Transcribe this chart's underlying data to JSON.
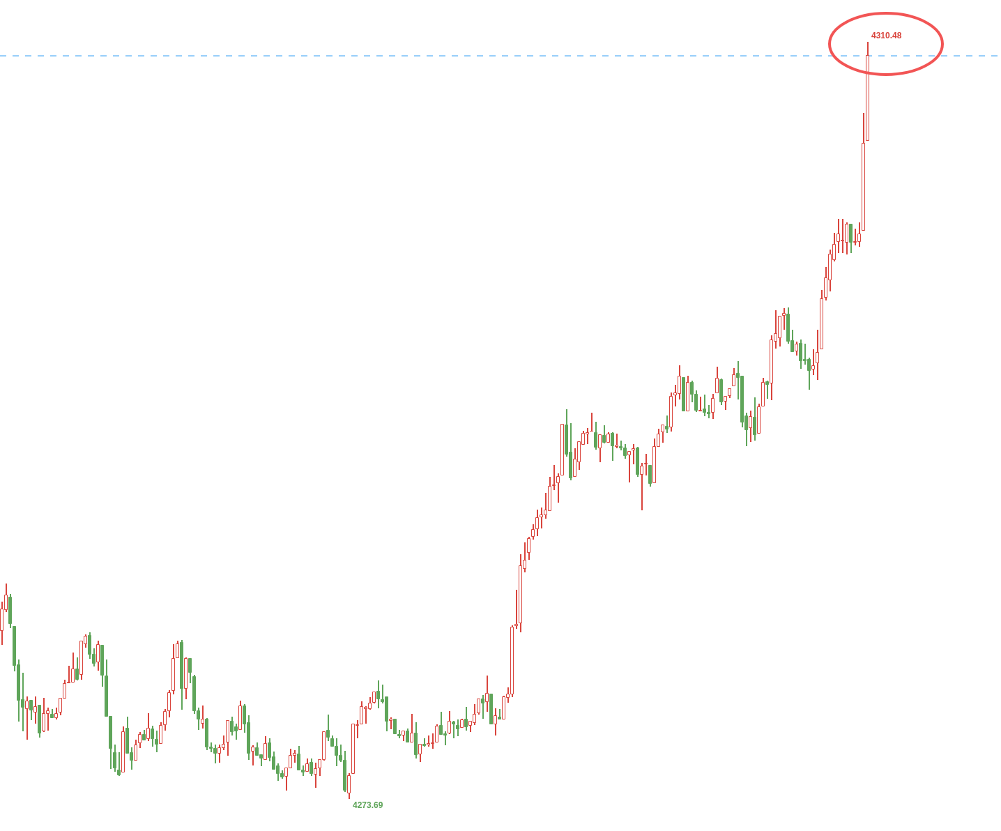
{
  "chart_data": {
    "type": "candlestick",
    "categories": [
      null,
      null,
      null,
      null,
      null,
      null,
      null,
      null,
      null,
      null,
      null,
      null,
      null,
      null,
      null,
      null,
      null,
      null,
      null,
      null,
      null,
      null,
      null,
      null,
      null,
      null,
      null,
      null,
      null,
      null,
      null,
      null,
      null,
      null,
      null,
      null,
      null,
      null,
      null,
      null,
      null,
      null,
      null,
      null,
      null,
      null,
      null,
      null,
      null,
      null,
      null,
      null,
      null,
      null,
      null,
      null,
      null,
      null,
      null,
      null,
      null,
      null,
      null,
      null,
      null,
      null,
      null,
      null,
      null,
      null,
      null,
      null,
      null,
      null,
      null,
      null,
      null,
      null,
      null,
      null,
      null,
      null,
      null,
      null,
      null,
      null,
      null,
      null,
      null,
      null,
      null,
      null,
      null,
      null,
      null,
      null,
      null,
      null,
      null,
      null,
      null,
      null,
      null,
      null,
      null,
      null,
      null,
      null,
      null,
      null,
      null,
      null,
      null,
      null,
      null,
      null,
      null,
      null,
      null,
      null,
      null,
      null,
      null,
      null,
      null,
      null,
      null,
      null,
      null,
      null,
      null,
      null,
      null,
      null,
      null,
      null,
      null,
      null,
      null,
      null,
      null,
      null,
      null,
      null,
      null,
      null,
      null,
      null,
      null,
      null,
      null,
      null,
      null,
      null,
      null,
      null,
      null,
      null,
      null,
      null,
      null,
      null,
      null,
      null,
      null,
      null,
      null,
      null,
      null,
      null,
      null,
      null,
      null,
      null,
      null,
      null,
      null,
      null,
      null,
      null,
      null,
      null,
      null,
      null,
      null,
      null,
      null,
      null,
      null,
      null,
      null,
      null,
      null,
      null,
      null,
      null,
      null,
      null,
      null,
      null,
      null,
      null,
      null,
      null,
      null,
      null,
      null,
      null
    ],
    "ohlc": [
      [
        4281.85,
        4283.28,
        4281.17,
        4282.91
      ],
      [
        4282.87,
        4284.16,
        4282.77,
        4283.58
      ],
      [
        4283.48,
        4283.65,
        4281.99,
        4282.2
      ],
      [
        4282.05,
        4282.09,
        4279.89,
        4280.16
      ],
      [
        4280.19,
        4280.47,
        4277.45,
        4278.47
      ],
      [
        4278.5,
        4279.82,
        4276.97,
        4278.13
      ],
      [
        4278.06,
        4278.67,
        4276.57,
        4278.44
      ],
      [
        4278.47,
        4278.5,
        4277.52,
        4278.0
      ],
      [
        4277.89,
        4278.67,
        4277.35,
        4278.17
      ],
      [
        4278.23,
        4278.27,
        4276.67,
        4276.87
      ],
      [
        4276.97,
        4278.61,
        4276.94,
        4277.83
      ],
      [
        4277.83,
        4278.13,
        4277.01,
        4277.96
      ],
      [
        4277.79,
        4278.06,
        4277.62,
        4277.62
      ],
      [
        4277.62,
        4278.13,
        4277.55,
        4277.83
      ],
      [
        4277.89,
        4278.61,
        4277.76,
        4278.57
      ],
      [
        4278.57,
        4279.48,
        4278.57,
        4279.28
      ],
      [
        4279.31,
        4280.16,
        4279.3,
        4279.35
      ],
      [
        4279.35,
        4280.8,
        4279.35,
        4279.99
      ],
      [
        4279.99,
        4280.56,
        4279.45,
        4279.48
      ],
      [
        4279.72,
        4281.38,
        4279.48,
        4281.34
      ],
      [
        4281.21,
        4281.68,
        4281.04,
        4281.58
      ],
      [
        4281.61,
        4281.78,
        4280.5,
        4280.7
      ],
      [
        4280.7,
        4281.0,
        4280.13,
        4280.26
      ],
      [
        4280.33,
        4281.38,
        4279.92,
        4281.17
      ],
      [
        4281.14,
        4281.17,
        4279.14,
        4279.68
      ],
      [
        4279.65,
        4280.47,
        4277.69,
        4277.69
      ],
      [
        4277.69,
        4277.72,
        4275.15,
        4276.13
      ],
      [
        4275.93,
        4276.33,
        4275.0,
        4275.18
      ],
      [
        4275.07,
        4275.96,
        4274.81,
        4274.84
      ],
      [
        4274.97,
        4277.21,
        4274.97,
        4276.94
      ],
      [
        4277.11,
        4277.69,
        4275.89,
        4275.89
      ],
      [
        4275.93,
        4276.2,
        4275.11,
        4275.55
      ],
      [
        4275.55,
        4276.57,
        4275.55,
        4276.3
      ],
      [
        4276.4,
        4276.94,
        4276.16,
        4276.81
      ],
      [
        4276.81,
        4277.04,
        4276.54,
        4276.54
      ],
      [
        4276.6,
        4277.86,
        4276.5,
        4277.11
      ],
      [
        4277.08,
        4277.25,
        4276.23,
        4276.6
      ],
      [
        4276.57,
        4277.01,
        4275.96,
        4276.33
      ],
      [
        4276.37,
        4277.42,
        4276.37,
        4277.25
      ],
      [
        4277.28,
        4278.06,
        4277.01,
        4277.93
      ],
      [
        4277.96,
        4278.98,
        4277.65,
        4278.84
      ],
      [
        4278.94,
        4281.21,
        4278.77,
        4280.5
      ],
      [
        4280.53,
        4281.38,
        4280.53,
        4281.21
      ],
      [
        4281.28,
        4281.41,
        4278.03,
        4279.04
      ],
      [
        4279.04,
        4280.56,
        4278.54,
        4280.5
      ],
      [
        4280.5,
        4280.53,
        4279.31,
        4279.82
      ],
      [
        4279.62,
        4279.72,
        4277.83,
        4277.96
      ],
      [
        4277.96,
        4278.13,
        4277.04,
        4277.55
      ],
      [
        4277.35,
        4278.23,
        4277.11,
        4277.55
      ],
      [
        4277.55,
        4277.62,
        4276.06,
        4276.2
      ],
      [
        4276.2,
        4276.43,
        4275.96,
        4276.13
      ],
      [
        4276.13,
        4276.33,
        4275.42,
        4275.89
      ],
      [
        4275.89,
        4276.33,
        4275.45,
        4276.16
      ],
      [
        4276.16,
        4276.77,
        4276.06,
        4276.33
      ],
      [
        4276.43,
        4277.52,
        4275.79,
        4277.48
      ],
      [
        4277.45,
        4277.69,
        4276.77,
        4276.94
      ],
      [
        4277.18,
        4277.35,
        4276.57,
        4276.97
      ],
      [
        4277.04,
        4278.47,
        4277.04,
        4278.2
      ],
      [
        4278.2,
        4278.3,
        4276.91,
        4277.31
      ],
      [
        4277.38,
        4277.76,
        4275.59,
        4275.89
      ],
      [
        4276.0,
        4276.3,
        4275.32,
        4276.2
      ],
      [
        4276.16,
        4276.43,
        4275.79,
        4275.79
      ],
      [
        4275.83,
        4275.86,
        4275.28,
        4275.66
      ],
      [
        4275.59,
        4276.74,
        4275.59,
        4276.37
      ],
      [
        4276.4,
        4276.64,
        4275.52,
        4275.69
      ],
      [
        4275.72,
        4276.0,
        4275.11,
        4275.11
      ],
      [
        4275.28,
        4275.42,
        4274.57,
        4274.91
      ],
      [
        4274.91,
        4275.07,
        4274.67,
        4274.74
      ],
      [
        4274.77,
        4275.21,
        4274.1,
        4275.18
      ],
      [
        4275.18,
        4276.13,
        4275.18,
        4275.79
      ],
      [
        4275.79,
        4276.06,
        4275.45,
        4275.89
      ],
      [
        4275.86,
        4276.27,
        4275.07,
        4275.07
      ],
      [
        4275.08,
        4275.32,
        4274.81,
        4274.97
      ],
      [
        4275.01,
        4275.66,
        4275.0,
        4275.38
      ],
      [
        4275.45,
        4275.66,
        4274.81,
        4274.91
      ],
      [
        4274.88,
        4275.45,
        4274.23,
        4275.15
      ],
      [
        4275.18,
        4275.62,
        4274.81,
        4275.59
      ],
      [
        4275.59,
        4276.97,
        4275.55,
        4276.94
      ],
      [
        4277.01,
        4277.79,
        4276.5,
        4276.67
      ],
      [
        4276.6,
        4276.77,
        4276.23,
        4276.23
      ],
      [
        4276.23,
        4276.64,
        4275.28,
        4275.79
      ],
      [
        4275.79,
        4276.33,
        4275.49,
        4275.55
      ],
      [
        4275.55,
        4276.03,
        4274.03,
        4274.1
      ],
      [
        4273.96,
        4274.94,
        4273.69,
        4274.81
      ],
      [
        4274.91,
        4277.35,
        4274.91,
        4277.31
      ],
      [
        4277.25,
        4277.52,
        4276.64,
        4277.28
      ],
      [
        4277.31,
        4278.44,
        4277.31,
        4278.17
      ],
      [
        4278.06,
        4278.2,
        4277.35,
        4278.13
      ],
      [
        4278.06,
        4278.64,
        4278.03,
        4278.33
      ],
      [
        4278.37,
        4278.91,
        4278.33,
        4278.87
      ],
      [
        4278.91,
        4279.45,
        4278.1,
        4278.54
      ],
      [
        4278.5,
        4279.24,
        4278.33,
        4278.4
      ],
      [
        4278.64,
        4278.67,
        4276.97,
        4277.45
      ],
      [
        4277.48,
        4277.65,
        4277.08,
        4277.55
      ],
      [
        4277.55,
        4277.59,
        4276.84,
        4276.84
      ],
      [
        4276.81,
        4277.04,
        4276.64,
        4276.74
      ],
      [
        4276.77,
        4277.01,
        4276.5,
        4276.97
      ],
      [
        4276.97,
        4277.11,
        4276.43,
        4276.43
      ],
      [
        4276.43,
        4277.83,
        4276.43,
        4276.87
      ],
      [
        4276.87,
        4277.42,
        4275.66,
        4275.83
      ],
      [
        4275.86,
        4276.37,
        4275.49,
        4276.33
      ],
      [
        4276.33,
        4276.64,
        4276.23,
        4276.27
      ],
      [
        4276.3,
        4276.77,
        4276.23,
        4276.37
      ],
      [
        4276.37,
        4276.87,
        4276.13,
        4276.4
      ],
      [
        4276.43,
        4277.31,
        4276.43,
        4277.21
      ],
      [
        4277.25,
        4277.93,
        4276.81,
        4276.81
      ],
      [
        4276.84,
        4276.97,
        4276.3,
        4276.77
      ],
      [
        4276.87,
        4277.96,
        4276.84,
        4277.45
      ],
      [
        4277.42,
        4277.48,
        4276.64,
        4277.31
      ],
      [
        4277.25,
        4277.55,
        4276.74,
        4277.08
      ],
      [
        4277.14,
        4277.59,
        4277.14,
        4277.52
      ],
      [
        4277.55,
        4278.17,
        4277.01,
        4277.18
      ],
      [
        4277.25,
        4277.48,
        4276.94,
        4277.45
      ],
      [
        4277.38,
        4278.3,
        4277.28,
        4277.79
      ],
      [
        4277.86,
        4278.57,
        4277.79,
        4278.54
      ],
      [
        4278.54,
        4278.74,
        4277.59,
        4278.33
      ],
      [
        4278.4,
        4279.68,
        4277.93,
        4278.81
      ],
      [
        4278.77,
        4278.81,
        4277.31,
        4277.31
      ],
      [
        4277.31,
        4278.1,
        4276.77,
        4277.72
      ],
      [
        4277.65,
        4278.06,
        4277.55,
        4277.55
      ],
      [
        4277.55,
        4278.71,
        4277.55,
        4278.64
      ],
      [
        4278.61,
        4279.11,
        4278.37,
        4278.77
      ],
      [
        4278.77,
        4282.12,
        4278.64,
        4282.02
      ],
      [
        4282.09,
        4283.86,
        4281.95,
        4282.16
      ],
      [
        4282.23,
        4285.58,
        4281.78,
        4285.0
      ],
      [
        4284.87,
        4286.16,
        4284.7,
        4285.28
      ],
      [
        4285.65,
        4286.43,
        4285.31,
        4286.33
      ],
      [
        4286.43,
        4287.04,
        4286.3,
        4286.77
      ],
      [
        4286.8,
        4287.75,
        4286.47,
        4287.35
      ],
      [
        4287.38,
        4287.86,
        4286.84,
        4287.48
      ],
      [
        4287.48,
        4288.56,
        4287.31,
        4287.72
      ],
      [
        4287.69,
        4289.34,
        4287.69,
        4288.87
      ],
      [
        4288.9,
        4289.91,
        4288.7,
        4288.94
      ],
      [
        4289.04,
        4289.51,
        4288.09,
        4289.34
      ],
      [
        4289.41,
        4291.92,
        4289.41,
        4291.89
      ],
      [
        4291.85,
        4292.63,
        4290.32,
        4290.42
      ],
      [
        4290.52,
        4291.95,
        4289.17,
        4289.28
      ],
      [
        4289.34,
        4290.73,
        4289.34,
        4290.18
      ],
      [
        4290.05,
        4291.07,
        4289.68,
        4291.04
      ],
      [
        4290.9,
        4291.58,
        4290.9,
        4291.44
      ],
      [
        4291.41,
        4291.72,
        4290.93,
        4291.48
      ],
      [
        4291.55,
        4292.46,
        4291.55,
        4291.56
      ],
      [
        4291.48,
        4292.02,
        4290.66,
        4290.76
      ],
      [
        4290.73,
        4291.41,
        4290.05,
        4291.38
      ],
      [
        4291.34,
        4291.85,
        4290.97,
        4291.0
      ],
      [
        4291.0,
        4291.51,
        4291.0,
        4291.41
      ],
      [
        4291.44,
        4291.51,
        4290.12,
        4290.83
      ],
      [
        4290.8,
        4291.44,
        4290.73,
        4290.87
      ],
      [
        4290.8,
        4291.11,
        4290.63,
        4290.73
      ],
      [
        4290.73,
        4290.93,
        4290.22,
        4290.35
      ],
      [
        4290.39,
        4290.59,
        4289.07,
        4290.56
      ],
      [
        4290.63,
        4290.93,
        4289.95,
        4290.69
      ],
      [
        4290.73,
        4290.8,
        4289.34,
        4289.44
      ],
      [
        4289.44,
        4290.01,
        4287.72,
        4289.85
      ],
      [
        4289.95,
        4290.46,
        4289.41,
        4289.98
      ],
      [
        4289.88,
        4289.91,
        4288.87,
        4289.0
      ],
      [
        4289.04,
        4291.21,
        4289.04,
        4290.8
      ],
      [
        4290.8,
        4291.68,
        4290.8,
        4291.41
      ],
      [
        4291.51,
        4291.89,
        4291.0,
        4291.85
      ],
      [
        4291.78,
        4292.33,
        4291.48,
        4291.65
      ],
      [
        4291.75,
        4293.44,
        4291.55,
        4293.24
      ],
      [
        4293.3,
        4293.81,
        4292.76,
        4293.41
      ],
      [
        4293.37,
        4294.76,
        4293.1,
        4294.22
      ],
      [
        4294.15,
        4294.19,
        4292.53,
        4292.53
      ],
      [
        4292.53,
        4294.25,
        4292.53,
        4293.91
      ],
      [
        4293.91,
        4294.02,
        4292.97,
        4293.34
      ],
      [
        4293.34,
        4293.54,
        4292.49,
        4292.56
      ],
      [
        4292.53,
        4293.24,
        4292.53,
        4292.56
      ],
      [
        4292.63,
        4293.34,
        4292.29,
        4292.46
      ],
      [
        4292.46,
        4292.83,
        4292.19,
        4292.39
      ],
      [
        4292.46,
        4293.37,
        4292.16,
        4293.14
      ],
      [
        4293.41,
        4294.69,
        4293.41,
        4294.12
      ],
      [
        4294.05,
        4294.12,
        4292.83,
        4292.97
      ],
      [
        4293.0,
        4293.27,
        4292.59,
        4293.24
      ],
      [
        4293.27,
        4293.64,
        4293.17,
        4293.61
      ],
      [
        4293.74,
        4294.63,
        4293.74,
        4294.29
      ],
      [
        4294.36,
        4294.97,
        4293.1,
        4294.15
      ],
      [
        4294.22,
        4294.25,
        4291.75,
        4291.99
      ],
      [
        4292.29,
        4292.46,
        4290.83,
        4291.61
      ],
      [
        4291.72,
        4292.56,
        4291.04,
        4292.26
      ],
      [
        4292.22,
        4293.2,
        4291.11,
        4291.38
      ],
      [
        4291.44,
        4292.9,
        4291.44,
        4292.73
      ],
      [
        4292.76,
        4294.15,
        4292.76,
        4293.91
      ],
      [
        4293.95,
        4294.02,
        4293.14,
        4293.81
      ],
      [
        4293.88,
        4296.22,
        4293.07,
        4295.99
      ],
      [
        4295.92,
        4297.44,
        4295.58,
        4296.29
      ],
      [
        4296.09,
        4297.17,
        4295.68,
        4297.14
      ],
      [
        4297.17,
        4297.54,
        4296.5,
        4297.27
      ],
      [
        4297.24,
        4297.58,
        4295.82,
        4295.92
      ],
      [
        4295.95,
        4296.5,
        4295.41,
        4295.41
      ],
      [
        4295.45,
        4295.92,
        4295.24,
        4295.79
      ],
      [
        4295.82,
        4296.02,
        4294.59,
        4294.97
      ],
      [
        4295.04,
        4295.82,
        4294.8,
        4294.97
      ],
      [
        4295.04,
        4295.14,
        4293.58,
        4294.49
      ],
      [
        4294.56,
        4295.55,
        4294.29,
        4294.73
      ],
      [
        4294.86,
        4296.5,
        4294.05,
        4295.38
      ],
      [
        4295.55,
        4298.42,
        4295.55,
        4297.98
      ],
      [
        4298.05,
        4299.54,
        4297.91,
        4299.0
      ],
      [
        4298.89,
        4300.39,
        4298.35,
        4300.15
      ],
      [
        4299.88,
        4301.2,
        4299.82,
        4300.63
      ],
      [
        4300.76,
        4301.88,
        4300.22,
        4301.13
      ],
      [
        4300.8,
        4301.88,
        4300.22,
        4300.83
      ],
      [
        4300.73,
        4301.71,
        4300.15,
        4301.61
      ],
      [
        4301.61,
        4301.65,
        4300.22,
        4300.73
      ],
      [
        4300.73,
        4301.41,
        4300.59,
        4300.76
      ],
      [
        4300.76,
        4301.71,
        4300.52,
        4301.13
      ],
      [
        4301.3,
        4307.02,
        4301.3,
        4305.54
      ],
      [
        4305.67,
        4310.48,
        4305.67,
        4309.8
      ]
    ],
    "colors": [
      "#d9443c",
      "#d9443c",
      "#5fa55a",
      "#5fa55a",
      "#5fa55a",
      "#5fa55a",
      "#d9443c",
      "#5fa55a",
      "#d9443c",
      "#5fa55a",
      "#d9443c",
      "#d9443c",
      "#5fa55a",
      "#d9443c",
      "#d9443c",
      "#d9443c",
      "#d9443c",
      "#d9443c",
      "#5fa55a",
      "#d9443c",
      "#d9443c",
      "#5fa55a",
      "#5fa55a",
      "#d9443c",
      "#5fa55a",
      "#5fa55a",
      "#5fa55a",
      "#5fa55a",
      "#5fa55a",
      "#d9443c",
      "#5fa55a",
      "#5fa55a",
      "#d9443c",
      "#d9443c",
      "#5fa55a",
      "#d9443c",
      "#5fa55a",
      "#5fa55a",
      "#d9443c",
      "#d9443c",
      "#d9443c",
      "#d9443c",
      "#d9443c",
      "#5fa55a",
      "#d9443c",
      "#5fa55a",
      "#5fa55a",
      "#5fa55a",
      "#d9443c",
      "#5fa55a",
      "#5fa55a",
      "#5fa55a",
      "#d9443c",
      "#d9443c",
      "#d9443c",
      "#5fa55a",
      "#5fa55a",
      "#d9443c",
      "#5fa55a",
      "#5fa55a",
      "#d9443c",
      "#5fa55a",
      "#5fa55a",
      "#d9443c",
      "#5fa55a",
      "#5fa55a",
      "#5fa55a",
      "#5fa55a",
      "#d9443c",
      "#d9443c",
      "#d9443c",
      "#5fa55a",
      "#5fa55a",
      "#d9443c",
      "#5fa55a",
      "#d9443c",
      "#d9443c",
      "#d9443c",
      "#5fa55a",
      "#5fa55a",
      "#5fa55a",
      "#5fa55a",
      "#5fa55a",
      "#d9443c",
      "#d9443c",
      "#d9443c",
      "#d9443c",
      "#d9443c",
      "#d9443c",
      "#d9443c",
      "#5fa55a",
      "#5fa55a",
      "#5fa55a",
      "#d9443c",
      "#5fa55a",
      "#5fa55a",
      "#d9443c",
      "#5fa55a",
      "#d9443c",
      "#5fa55a",
      "#d9443c",
      "#5fa55a",
      "#d9443c",
      "#d9443c",
      "#d9443c",
      "#5fa55a",
      "#5fa55a",
      "#d9443c",
      "#5fa55a",
      "#5fa55a",
      "#d9443c",
      "#5fa55a",
      "#d9443c",
      "#d9443c",
      "#d9443c",
      "#5fa55a",
      "#d9443c",
      "#5fa55a",
      "#d9443c",
      "#5fa55a",
      "#d9443c",
      "#d9443c",
      "#d9443c",
      "#d9443c",
      "#d9443c",
      "#d9443c",
      "#d9443c",
      "#d9443c",
      "#d9443c",
      "#d9443c",
      "#d9443c",
      "#d9443c",
      "#d9443c",
      "#d9443c",
      "#d9443c",
      "#5fa55a",
      "#5fa55a",
      "#d9443c",
      "#d9443c",
      "#d9443c",
      "#d9443c",
      "#d9443c",
      "#5fa55a",
      "#d9443c",
      "#5fa55a",
      "#d9443c",
      "#5fa55a",
      "#d9443c",
      "#5fa55a",
      "#5fa55a",
      "#d9443c",
      "#d9443c",
      "#5fa55a",
      "#d9443c",
      "#d9443c",
      "#5fa55a",
      "#d9443c",
      "#d9443c",
      "#d9443c",
      "#5fa55a",
      "#d9443c",
      "#d9443c",
      "#d9443c",
      "#5fa55a",
      "#d9443c",
      "#5fa55a",
      "#5fa55a",
      "#d9443c",
      "#5fa55a",
      "#5fa55a",
      "#d9443c",
      "#d9443c",
      "#5fa55a",
      "#d9443c",
      "#d9443c",
      "#d9443c",
      "#5fa55a",
      "#5fa55a",
      "#5fa55a",
      "#d9443c",
      "#5fa55a",
      "#d9443c",
      "#d9443c",
      "#5fa55a",
      "#d9443c",
      "#d9443c",
      "#d9443c",
      "#d9443c",
      "#5fa55a",
      "#5fa55a",
      "#d9443c",
      "#5fa55a",
      "#5fa55a",
      "#5fa55a",
      "#d9443c",
      "#d9443c",
      "#d9443c",
      "#d9443c",
      "#d9443c",
      "#d9443c",
      "#d9443c",
      "#d9443c",
      "#d9443c",
      "#5fa55a",
      "#d9443c",
      "#d9443c",
      "#d9443c",
      "#d9443c"
    ],
    "ref_lines": [
      {
        "axis": "y",
        "value": 4309.8,
        "color": "#2196f3",
        "line_style": "dashed"
      }
    ],
    "annotations": [
      "4310.48",
      "4273.69"
    ]
  }
}
